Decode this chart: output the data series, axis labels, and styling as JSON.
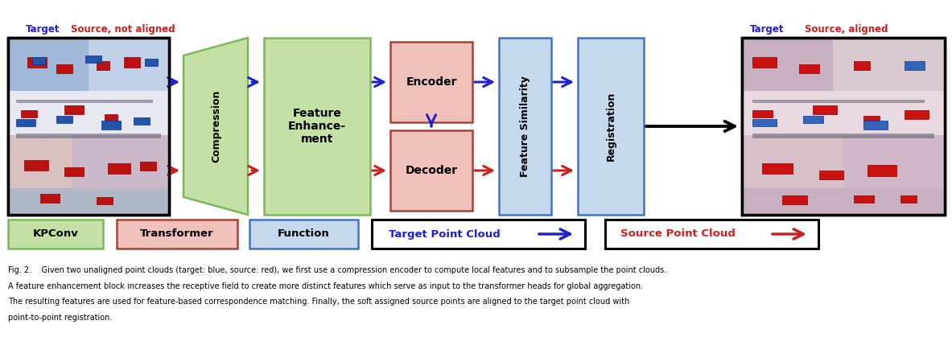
{
  "fig_width": 11.83,
  "fig_height": 4.19,
  "bg_color": "#ffffff",
  "caption_line1": "Fig. 2.    Given two unaligned point clouds (target: blue, source: red), we first use a compression encoder to compute local features and to subsample the point clouds.",
  "caption_line2": "A feature enhancement block increases the receptive field to create more distinct features which serve as input to the transformer heads for global aggregation.",
  "caption_line3": "The resulting features are used for feature-based correspondence matching. Finally, the soft assigned source points are aligned to the target point cloud with",
  "caption_line4": "point-to-point registration.",
  "colors": {
    "green_box": "#7BB85A",
    "green_fill": "#C5E0A5",
    "red_box": "#A0453A",
    "red_fill": "#F0C0BB",
    "light_blue_fill": "#C5D9EE",
    "light_blue_box": "#4472C4",
    "black": "#000000",
    "blue_arrow": "#2020CC",
    "red_arrow": "#CC2020",
    "black_arrow": "#000000"
  }
}
